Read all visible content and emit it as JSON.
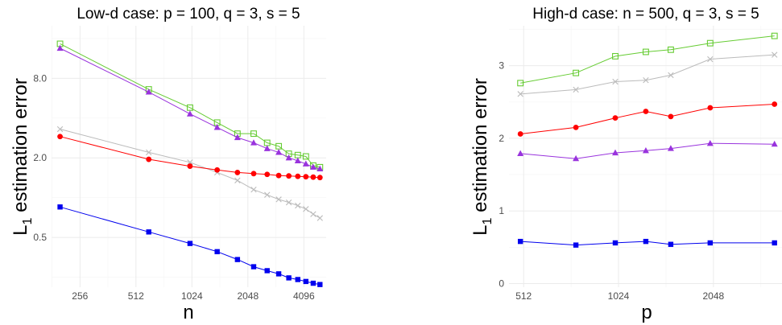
{
  "colors": {
    "green": "#66cc33",
    "purple": "#9933dd",
    "gray": "#bbbbbb",
    "red": "#ff0000",
    "blue": "#0000ee"
  },
  "chart_data": [
    {
      "type": "line",
      "title": "Low-d case: p = 100, q = 3, s = 5",
      "xlabel": "n",
      "ylabel_main": "L",
      "ylabel_sub": "1",
      "ylabel_rest": " estimation error",
      "xscale": "log2",
      "yscale": "log",
      "xlim": [
        180,
        5400
      ],
      "ylim": [
        0.21,
        20
      ],
      "xticks": [
        256,
        512,
        1024,
        2048,
        4096
      ],
      "xtick_labels": [
        "256",
        "512",
        "1024",
        "2048",
        "4096"
      ],
      "yticks": [
        0.5,
        2.0,
        8.0
      ],
      "ytick_labels": [
        "0.5",
        "2.0",
        "8.0"
      ],
      "grid": true,
      "x": [
        200,
        600,
        1000,
        1400,
        1800,
        2200,
        2600,
        3000,
        3400,
        3800,
        4200,
        4600,
        5000
      ],
      "series": [
        {
          "color": "green",
          "marker": "square-open",
          "values": [
            14.6,
            6.6,
            4.8,
            3.7,
            3.05,
            3.05,
            2.6,
            2.45,
            2.15,
            2.1,
            2.05,
            1.75,
            1.7
          ]
        },
        {
          "color": "purple",
          "marker": "triangle",
          "values": [
            13.5,
            6.3,
            4.3,
            3.4,
            2.85,
            2.6,
            2.35,
            2.2,
            2.0,
            1.9,
            1.8,
            1.7,
            1.65
          ]
        },
        {
          "color": "gray",
          "marker": "x",
          "values": [
            3.3,
            2.2,
            1.85,
            1.55,
            1.35,
            1.15,
            1.05,
            0.97,
            0.92,
            0.87,
            0.82,
            0.75,
            0.7
          ]
        },
        {
          "color": "red",
          "marker": "circle",
          "values": [
            2.9,
            1.95,
            1.73,
            1.62,
            1.55,
            1.52,
            1.5,
            1.47,
            1.46,
            1.45,
            1.44,
            1.43,
            1.42
          ]
        },
        {
          "color": "blue",
          "marker": "square",
          "values": [
            0.85,
            0.55,
            0.45,
            0.39,
            0.34,
            0.3,
            0.28,
            0.265,
            0.247,
            0.24,
            0.232,
            0.225,
            0.22
          ]
        }
      ]
    },
    {
      "type": "line",
      "title": "High-d case: n = 500, q = 3, s = 5",
      "xlabel": "p",
      "ylabel_main": "L",
      "ylabel_sub": "1",
      "ylabel_rest": " estimation error",
      "xscale": "log2",
      "yscale": "linear",
      "xlim": [
        460,
        3400
      ],
      "ylim": [
        -0.05,
        3.55
      ],
      "xticks": [
        512,
        1024,
        2048
      ],
      "xtick_labels": [
        "512",
        "1024",
        "2048"
      ],
      "yticks": [
        0,
        1,
        2,
        3
      ],
      "ytick_labels": [
        "0",
        "1",
        "2",
        "3"
      ],
      "grid": true,
      "x": [
        500,
        750,
        1000,
        1250,
        1500,
        2000,
        3200
      ],
      "series": [
        {
          "color": "green",
          "marker": "square-open",
          "values": [
            2.76,
            2.9,
            3.13,
            3.19,
            3.22,
            3.31,
            3.41
          ]
        },
        {
          "color": "gray",
          "marker": "x",
          "values": [
            2.61,
            2.67,
            2.78,
            2.8,
            2.87,
            3.09,
            3.15
          ]
        },
        {
          "color": "red",
          "marker": "circle",
          "values": [
            2.06,
            2.15,
            2.28,
            2.37,
            2.3,
            2.42,
            2.47
          ]
        },
        {
          "color": "purple",
          "marker": "triangle",
          "values": [
            1.79,
            1.72,
            1.8,
            1.83,
            1.86,
            1.93,
            1.92
          ]
        },
        {
          "color": "blue",
          "marker": "square",
          "values": [
            0.58,
            0.53,
            0.56,
            0.58,
            0.54,
            0.56,
            0.56
          ]
        }
      ]
    }
  ]
}
